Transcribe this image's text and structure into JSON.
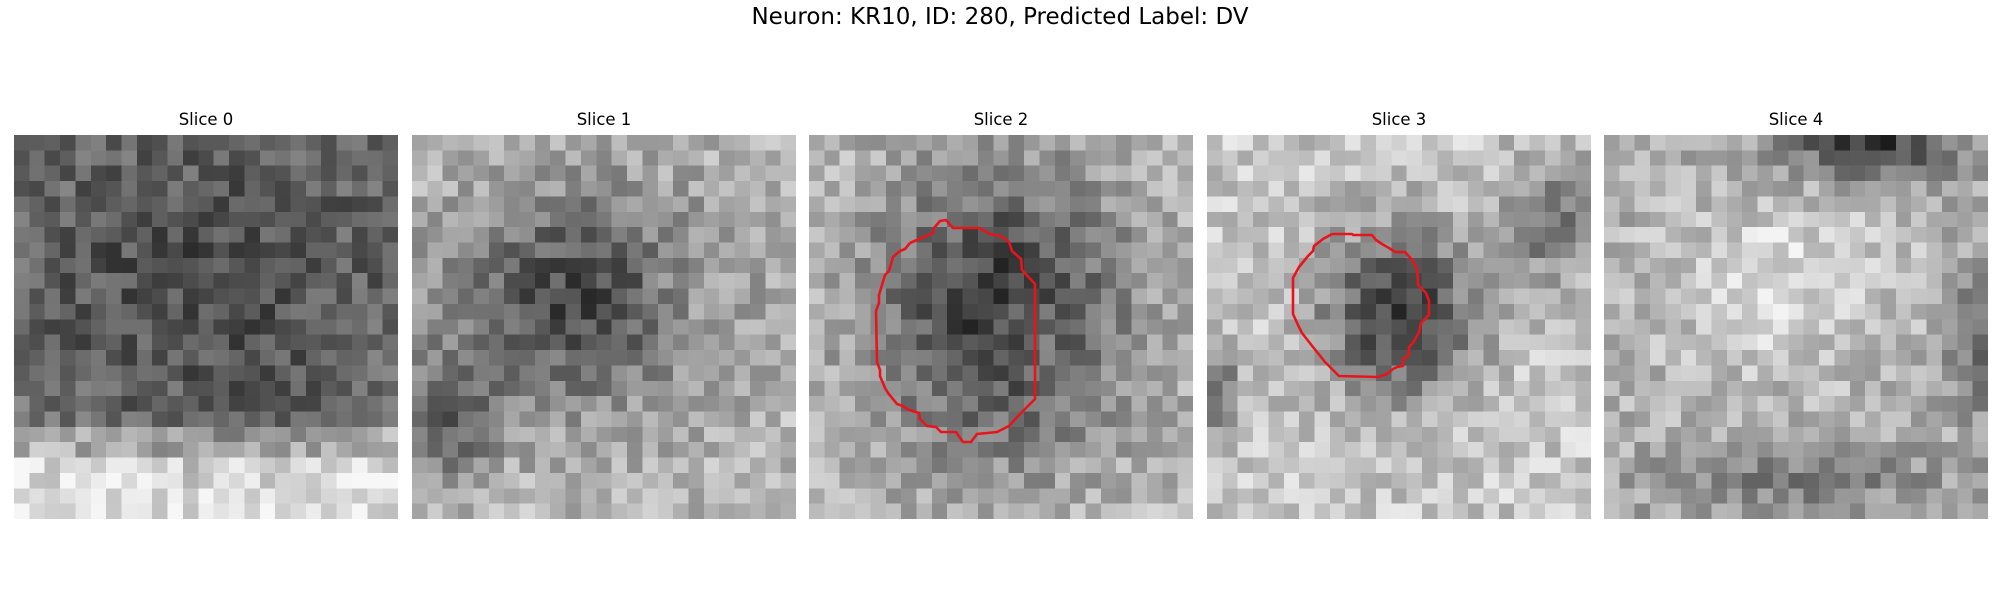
{
  "figure": {
    "title": "Neuron: KR10, ID: 280, Predicted Label: DV"
  },
  "panels": [
    {
      "title": "Slice 0",
      "has_outline": false
    },
    {
      "title": "Slice 1",
      "has_outline": false
    },
    {
      "title": "Slice 2",
      "has_outline": true
    },
    {
      "title": "Slice 3",
      "has_outline": true
    },
    {
      "title": "Slice 4",
      "has_outline": false
    }
  ],
  "colors": {
    "outline": "#e8141b",
    "background": "#ffffff"
  }
}
